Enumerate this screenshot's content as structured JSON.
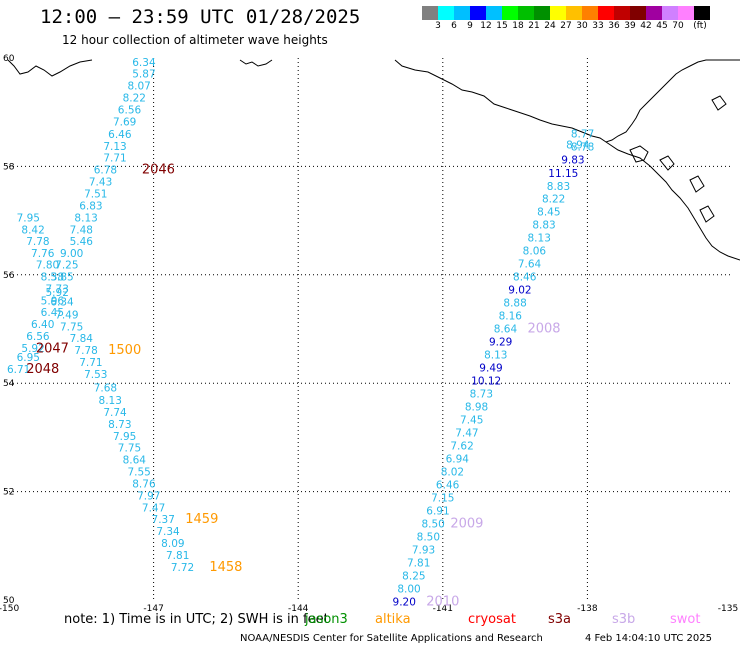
{
  "title": "12:00 – 23:59 UTC 01/28/2025",
  "subtitle": "12 hour collection of altimeter wave heights",
  "colorbar": {
    "colors": [
      "#808080",
      "#00ffff",
      "#00bfff",
      "#0000ff",
      "#00c0ff",
      "#00ff00",
      "#00bf00",
      "#009000",
      "#ffff00",
      "#ffc000",
      "#ff8000",
      "#ff0000",
      "#c00000",
      "#800000",
      "#a000a0",
      "#d080ff",
      "#ff80ff",
      "#000000"
    ],
    "labels": [
      "3",
      "6",
      "9",
      "12",
      "15",
      "18",
      "21",
      "24",
      "27",
      "30",
      "33",
      "36",
      "39",
      "42",
      "45",
      "70",
      "(ft)"
    ]
  },
  "axes": {
    "lon_labels": [
      "-150",
      "-147",
      "-144",
      "-141",
      "-138",
      "-135"
    ],
    "lat_labels": [
      "60",
      "58",
      "56",
      "54",
      "52",
      "50"
    ]
  },
  "observations": [
    {
      "text": "6.34",
      "lon": -147.2,
      "lat": 59.93,
      "color": "#28b8e8"
    },
    {
      "text": "5.87",
      "lon": -147.2,
      "lat": 59.71,
      "color": "#28b8e8"
    },
    {
      "text": "8.07",
      "lon": -147.3,
      "lat": 59.49,
      "color": "#28b8e8"
    },
    {
      "text": "8.22",
      "lon": -147.4,
      "lat": 59.27,
      "color": "#28b8e8"
    },
    {
      "text": "6.56",
      "lon": -147.5,
      "lat": 59.05,
      "color": "#28b8e8"
    },
    {
      "text": "7.69",
      "lon": -147.6,
      "lat": 58.83,
      "color": "#28b8e8"
    },
    {
      "text": "6.46",
      "lon": -147.7,
      "lat": 58.6,
      "color": "#28b8e8"
    },
    {
      "text": "7.13",
      "lon": -147.8,
      "lat": 58.38,
      "color": "#28b8e8"
    },
    {
      "text": "7.71",
      "lon": -147.8,
      "lat": 58.16,
      "color": "#28b8e8"
    },
    {
      "text": "6.78",
      "lon": -148.0,
      "lat": 57.94,
      "color": "#28b8e8"
    },
    {
      "text": "7.43",
      "lon": -148.1,
      "lat": 57.72,
      "color": "#28b8e8"
    },
    {
      "text": "7.51",
      "lon": -148.2,
      "lat": 57.5,
      "color": "#28b8e8"
    },
    {
      "text": "6.83",
      "lon": -148.3,
      "lat": 57.28,
      "color": "#28b8e8"
    },
    {
      "text": "8.13",
      "lon": -148.4,
      "lat": 57.06,
      "color": "#28b8e8"
    },
    {
      "text": "7.48",
      "lon": -148.5,
      "lat": 56.84,
      "color": "#28b8e8"
    },
    {
      "text": "5.46",
      "lon": -148.5,
      "lat": 56.62,
      "color": "#28b8e8"
    },
    {
      "text": "9.00",
      "lon": -148.7,
      "lat": 56.4,
      "color": "#28b8e8"
    },
    {
      "text": "7.25",
      "lon": -148.8,
      "lat": 56.19,
      "color": "#28b8e8"
    },
    {
      "text": "7.95",
      "lon": -149.6,
      "lat": 57.06,
      "color": "#28b8e8"
    },
    {
      "text": "8.42",
      "lon": -149.5,
      "lat": 56.84,
      "color": "#28b8e8"
    },
    {
      "text": "7.78",
      "lon": -149.4,
      "lat": 56.62,
      "color": "#28b8e8"
    },
    {
      "text": "7.76",
      "lon": -149.3,
      "lat": 56.4,
      "color": "#28b8e8"
    },
    {
      "text": "7.80",
      "lon": -149.2,
      "lat": 56.19,
      "color": "#28b8e8"
    },
    {
      "text": "8.38",
      "lon": -149.1,
      "lat": 55.97,
      "color": "#28b8e8"
    },
    {
      "text": "5.85",
      "lon": -148.9,
      "lat": 55.97,
      "color": "#28b8e8"
    },
    {
      "text": "7.73",
      "lon": -149.0,
      "lat": 55.75,
      "color": "#28b8e8"
    },
    {
      "text": "5.92",
      "lon": -149.0,
      "lat": 55.68,
      "color": "#28b8e8"
    },
    {
      "text": "5.96",
      "lon": -149.1,
      "lat": 55.53,
      "color": "#28b8e8"
    },
    {
      "text": "6.34",
      "lon": -148.9,
      "lat": 55.51,
      "color": "#28b8e8"
    },
    {
      "text": "6.45",
      "lon": -149.1,
      "lat": 55.31,
      "color": "#28b8e8"
    },
    {
      "text": "7.49",
      "lon": -148.8,
      "lat": 55.27,
      "color": "#28b8e8"
    },
    {
      "text": "6.40",
      "lon": -149.3,
      "lat": 55.09,
      "color": "#28b8e8"
    },
    {
      "text": "7.75",
      "lon": -148.7,
      "lat": 55.05,
      "color": "#28b8e8"
    },
    {
      "text": "6.56",
      "lon": -149.4,
      "lat": 54.87,
      "color": "#28b8e8"
    },
    {
      "text": "7.84",
      "lon": -148.5,
      "lat": 54.83,
      "color": "#28b8e8"
    },
    {
      "text": "5.92",
      "lon": -149.5,
      "lat": 54.65,
      "color": "#28b8e8"
    },
    {
      "text": "7.78",
      "lon": -148.4,
      "lat": 54.61,
      "color": "#28b8e8"
    },
    {
      "text": "6.95",
      "lon": -149.6,
      "lat": 54.48,
      "color": "#28b8e8"
    },
    {
      "text": "7.71",
      "lon": -148.3,
      "lat": 54.39,
      "color": "#28b8e8"
    },
    {
      "text": "6.71",
      "lon": -149.8,
      "lat": 54.26,
      "color": "#28b8e8"
    },
    {
      "text": "7.53",
      "lon": -148.2,
      "lat": 54.17,
      "color": "#28b8e8"
    },
    {
      "text": "7.68",
      "lon": -148.0,
      "lat": 53.92,
      "color": "#28b8e8"
    },
    {
      "text": "8.13",
      "lon": -147.9,
      "lat": 53.69,
      "color": "#28b8e8"
    },
    {
      "text": "7.74",
      "lon": -147.8,
      "lat": 53.47,
      "color": "#28b8e8"
    },
    {
      "text": "8.73",
      "lon": -147.7,
      "lat": 53.25,
      "color": "#28b8e8"
    },
    {
      "text": "7.95",
      "lon": -147.6,
      "lat": 53.03,
      "color": "#28b8e8"
    },
    {
      "text": "7.75",
      "lon": -147.5,
      "lat": 52.81,
      "color": "#28b8e8"
    },
    {
      "text": "8.64",
      "lon": -147.4,
      "lat": 52.59,
      "color": "#28b8e8"
    },
    {
      "text": "7.55",
      "lon": -147.3,
      "lat": 52.37,
      "color": "#28b8e8"
    },
    {
      "text": "8.76",
      "lon": -147.2,
      "lat": 52.15,
      "color": "#28b8e8"
    },
    {
      "text": "7.97",
      "lon": -147.1,
      "lat": 51.93,
      "color": "#28b8e8"
    },
    {
      "text": "7.47",
      "lon": -147.0,
      "lat": 51.71,
      "color": "#28b8e8"
    },
    {
      "text": "7.37",
      "lon": -146.8,
      "lat": 51.49,
      "color": "#28b8e8"
    },
    {
      "text": "7.34",
      "lon": -146.7,
      "lat": 51.27,
      "color": "#28b8e8"
    },
    {
      "text": "8.09",
      "lon": -146.6,
      "lat": 51.05,
      "color": "#28b8e8"
    },
    {
      "text": "7.81",
      "lon": -146.5,
      "lat": 50.83,
      "color": "#28b8e8"
    },
    {
      "text": "7.72",
      "lon": -146.4,
      "lat": 50.61,
      "color": "#28b8e8"
    },
    {
      "text": "8.77",
      "lon": -138.1,
      "lat": 58.61,
      "color": "#28b8e8"
    },
    {
      "text": "8.94",
      "lon": -138.2,
      "lat": 58.4,
      "color": "#28b8e8"
    },
    {
      "text": "8.78",
      "lon": -138.1,
      "lat": 58.37,
      "color": "#28b8e8"
    },
    {
      "text": "9.83",
      "lon": -138.3,
      "lat": 58.13,
      "color": "#0000c8"
    },
    {
      "text": "11.15",
      "lon": -138.5,
      "lat": 57.88,
      "color": "#0000c8"
    },
    {
      "text": "8.83",
      "lon": -138.6,
      "lat": 57.64,
      "color": "#28b8e8"
    },
    {
      "text": "8.22",
      "lon": -138.7,
      "lat": 57.41,
      "color": "#28b8e8"
    },
    {
      "text": "8.45",
      "lon": -138.8,
      "lat": 57.17,
      "color": "#28b8e8"
    },
    {
      "text": "8.83",
      "lon": -138.9,
      "lat": 56.93,
      "color": "#28b8e8"
    },
    {
      "text": "8.13",
      "lon": -139.0,
      "lat": 56.69,
      "color": "#28b8e8"
    },
    {
      "text": "8.06",
      "lon": -139.1,
      "lat": 56.45,
      "color": "#28b8e8"
    },
    {
      "text": "7.64",
      "lon": -139.2,
      "lat": 56.21,
      "color": "#28b8e8"
    },
    {
      "text": "8.46",
      "lon": -139.3,
      "lat": 55.97,
      "color": "#28b8e8"
    },
    {
      "text": "9.02",
      "lon": -139.4,
      "lat": 55.73,
      "color": "#0000c8"
    },
    {
      "text": "8.88",
      "lon": -139.5,
      "lat": 55.49,
      "color": "#28b8e8"
    },
    {
      "text": "8.16",
      "lon": -139.6,
      "lat": 55.25,
      "color": "#28b8e8"
    },
    {
      "text": "8.64",
      "lon": -139.7,
      "lat": 55.01,
      "color": "#28b8e8"
    },
    {
      "text": "9.29",
      "lon": -139.8,
      "lat": 54.77,
      "color": "#0000c8"
    },
    {
      "text": "8.13",
      "lon": -139.9,
      "lat": 54.53,
      "color": "#28b8e8"
    },
    {
      "text": "9.49",
      "lon": -140.0,
      "lat": 54.29,
      "color": "#0000c8"
    },
    {
      "text": "10.12",
      "lon": -140.1,
      "lat": 54.05,
      "color": "#0000c8"
    },
    {
      "text": "8.73",
      "lon": -140.2,
      "lat": 53.81,
      "color": "#28b8e8"
    },
    {
      "text": "8.98",
      "lon": -140.3,
      "lat": 53.57,
      "color": "#28b8e8"
    },
    {
      "text": "7.45",
      "lon": -140.4,
      "lat": 53.33,
      "color": "#28b8e8"
    },
    {
      "text": "7.47",
      "lon": -140.5,
      "lat": 53.09,
      "color": "#28b8e8"
    },
    {
      "text": "7.62",
      "lon": -140.6,
      "lat": 52.85,
      "color": "#28b8e8"
    },
    {
      "text": "6.94",
      "lon": -140.7,
      "lat": 52.61,
      "color": "#28b8e8"
    },
    {
      "text": "8.02",
      "lon": -140.8,
      "lat": 52.37,
      "color": "#28b8e8"
    },
    {
      "text": "6.46",
      "lon": -140.9,
      "lat": 52.13,
      "color": "#28b8e8"
    },
    {
      "text": "7.15",
      "lon": -141.0,
      "lat": 51.89,
      "color": "#28b8e8"
    },
    {
      "text": "6.91",
      "lon": -141.1,
      "lat": 51.65,
      "color": "#28b8e8"
    },
    {
      "text": "8.50",
      "lon": -141.2,
      "lat": 51.41,
      "color": "#28b8e8"
    },
    {
      "text": "8.50",
      "lon": -141.3,
      "lat": 51.17,
      "color": "#28b8e8"
    },
    {
      "text": "7.93",
      "lon": -141.4,
      "lat": 50.93,
      "color": "#28b8e8"
    },
    {
      "text": "7.81",
      "lon": -141.5,
      "lat": 50.69,
      "color": "#28b8e8"
    },
    {
      "text": "8.25",
      "lon": -141.6,
      "lat": 50.45,
      "color": "#28b8e8"
    },
    {
      "text": "8.00",
      "lon": -141.7,
      "lat": 50.21,
      "color": "#28b8e8"
    },
    {
      "text": "9.20",
      "lon": -141.8,
      "lat": 49.97,
      "color": "#0000c8"
    }
  ],
  "time_labels": [
    {
      "text": "2046",
      "lon": -146.9,
      "lat": 57.94,
      "color": "#800000"
    },
    {
      "text": "2047",
      "lon": -149.1,
      "lat": 54.64,
      "color": "#800000"
    },
    {
      "text": "2048",
      "lon": -149.3,
      "lat": 54.26,
      "color": "#800000"
    },
    {
      "text": "1500",
      "lon": -147.6,
      "lat": 54.61,
      "color": "#ff9900"
    },
    {
      "text": "1459",
      "lon": -146.0,
      "lat": 51.49,
      "color": "#ff9900"
    },
    {
      "text": "1458",
      "lon": -145.5,
      "lat": 50.61,
      "color": "#ff9900"
    },
    {
      "text": "2008",
      "lon": -138.9,
      "lat": 55.01,
      "color": "#c8a8e8"
    },
    {
      "text": "2009",
      "lon": -140.5,
      "lat": 51.41,
      "color": "#c8a8e8"
    },
    {
      "text": "2010",
      "lon": -141.0,
      "lat": 49.97,
      "color": "#c8a8e8"
    }
  ],
  "footer": {
    "note": "note: 1) Time is in UTC; 2) SWH is in feet",
    "legend": [
      {
        "label": "jason3",
        "color": "#009000"
      },
      {
        "label": "altika",
        "color": "#ff9900"
      },
      {
        "label": "cryosat",
        "color": "#ff0000"
      },
      {
        "label": "s3a",
        "color": "#800000"
      },
      {
        "label": "s3b",
        "color": "#c8a8e8"
      },
      {
        "label": "swot",
        "color": "#ff80ff"
      }
    ],
    "credit": "NOAA/NESDIS Center for Satellite Applications and Research",
    "timestamp": "4 Feb 14:04:10 UTC 2025"
  }
}
